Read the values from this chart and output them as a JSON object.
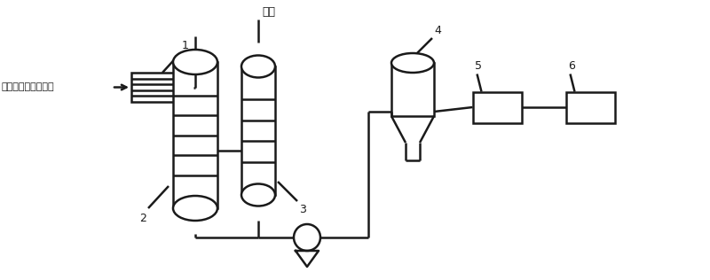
{
  "bg_color": "#ffffff",
  "line_color": "#1a1a1a",
  "lw": 1.8,
  "label_1": "1",
  "label_2": "2",
  "label_3": "3",
  "label_4": "4",
  "label_5": "5",
  "label_6": "6",
  "text_inlet": "流化床出口混合气体",
  "text_steam": "尾气",
  "font_size": 9,
  "font_family": "SimHei"
}
